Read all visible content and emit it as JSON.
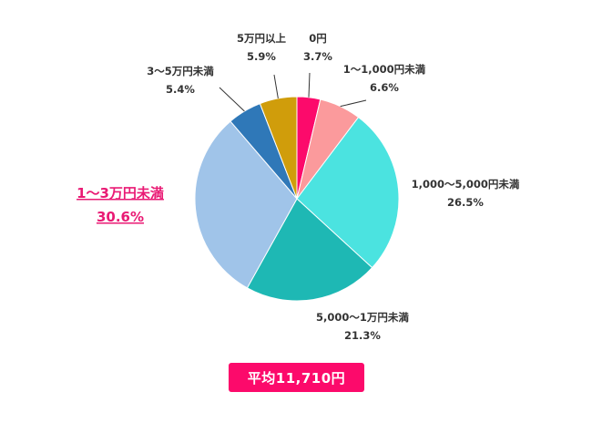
{
  "chart_data": {
    "type": "pie",
    "categories": [
      "0円",
      "1〜1,000円未満",
      "1,000〜5,000円未満",
      "5,000〜1万円未満",
      "1〜3万円未満",
      "3〜5万円未満",
      "5万円以上"
    ],
    "values": [
      3.7,
      6.6,
      26.5,
      21.3,
      30.6,
      5.4,
      5.9
    ],
    "value_labels": [
      "3.7%",
      "6.6%",
      "26.5%",
      "21.3%",
      "30.6%",
      "5.4%",
      "5.9%"
    ],
    "colors": [
      "#fc0a6b",
      "#fb9a9c",
      "#4be3e0",
      "#1eb8b4",
      "#a0c4e9",
      "#2f78b8",
      "#d09d0b"
    ],
    "highlight_index": 4,
    "highlight_color": "#e91a74",
    "start_angle_deg": 0,
    "direction": "clockwise"
  },
  "summary": {
    "label": "平均11,710円",
    "background": "#fc0a6b"
  }
}
